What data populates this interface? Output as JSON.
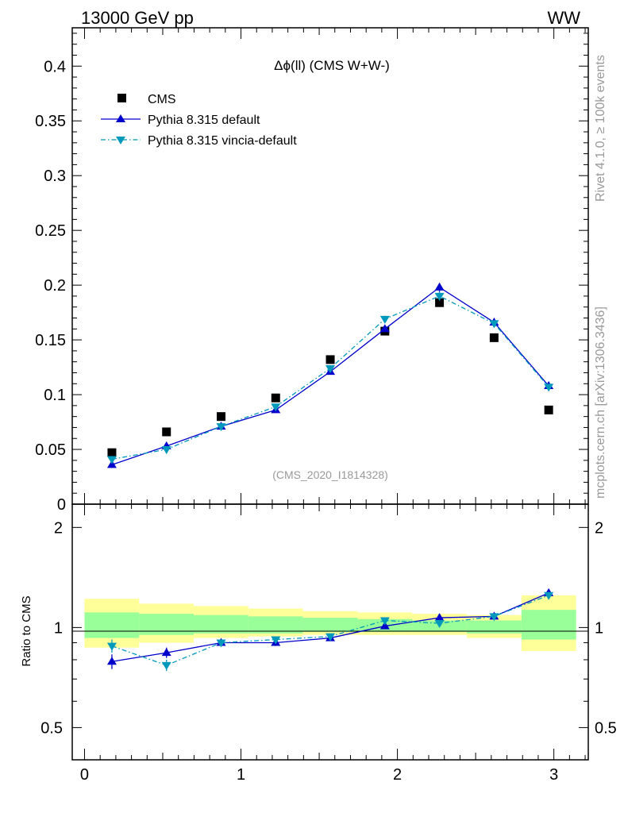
{
  "header": {
    "left": "13000 GeV pp",
    "right": "WW"
  },
  "side_labels": {
    "upper": "Rivet 4.1.0, ≥ 100k events",
    "lower": "mcplots.cern.ch [arXiv:1306.3436]"
  },
  "colors": {
    "cms": "#000000",
    "default": "#0000cc",
    "vincia": "#0099bb",
    "band_outer": "#ffff99",
    "band_inner": "#99ff99",
    "watermark": "#999999"
  },
  "chart_data": {
    "type": "scatter",
    "title": "Δϕ(ll) (CMS W+W-)",
    "analysis": "(CMS_2020_I1814328)",
    "xlim": [
      -0.0785,
      3.22
    ],
    "main": {
      "ylim": [
        0,
        0.435
      ],
      "yticks": [
        0,
        0.05,
        0.1,
        0.15,
        0.2,
        0.25,
        0.3,
        0.35,
        0.4
      ],
      "ytick_labels": [
        "0",
        "0.05",
        "0.1",
        "0.15",
        "0.2",
        "0.25",
        "0.3",
        "0.35",
        "0.4"
      ]
    },
    "ratio": {
      "ylabel": "Ratio to CMS",
      "ylim": [
        0.4,
        2.35
      ],
      "ytick_values": [
        0.5,
        1,
        2
      ],
      "ytick_labels": [
        "0.5",
        "1",
        "2"
      ]
    },
    "xticks": [
      0,
      1,
      2,
      3
    ],
    "xtick_labels": [
      "0",
      "1",
      "2",
      "3"
    ],
    "bin_edges": [
      0,
      0.349,
      0.698,
      1.047,
      1.396,
      1.745,
      2.094,
      2.443,
      2.793,
      3.142
    ],
    "x": [
      0.175,
      0.524,
      0.873,
      1.222,
      1.571,
      1.92,
      2.269,
      2.618,
      2.967
    ],
    "band_outer_ratio": [
      [
        0.87,
        1.22
      ],
      [
        0.9,
        1.18
      ],
      [
        0.93,
        1.16
      ],
      [
        0.94,
        1.14
      ],
      [
        0.95,
        1.12
      ],
      [
        0.95,
        1.11
      ],
      [
        0.95,
        1.1
      ],
      [
        0.93,
        1.09
      ],
      [
        0.85,
        1.25
      ]
    ],
    "band_inner_ratio": [
      [
        0.93,
        1.11
      ],
      [
        0.95,
        1.1
      ],
      [
        0.96,
        1.09
      ],
      [
        0.96,
        1.08
      ],
      [
        0.97,
        1.07
      ],
      [
        0.97,
        1.06
      ],
      [
        0.97,
        1.05
      ],
      [
        0.96,
        1.05
      ],
      [
        0.92,
        1.13
      ]
    ],
    "legend": [
      {
        "label": "CMS",
        "series": "cms"
      },
      {
        "label": "Pythia 8.315 default",
        "series": "default"
      },
      {
        "label": "Pythia 8.315 vincia-default",
        "series": "vincia"
      }
    ],
    "series": [
      {
        "key": "cms",
        "name": "CMS",
        "marker": "square",
        "values": [
          0.047,
          0.066,
          0.08,
          0.097,
          0.132,
          0.158,
          0.184,
          0.152,
          0.086
        ]
      },
      {
        "key": "default",
        "name": "Pythia 8.315 default",
        "marker": "triangle-up",
        "line": "solid",
        "values": [
          0.036,
          0.053,
          0.071,
          0.086,
          0.121,
          0.16,
          0.198,
          0.166,
          0.108
        ],
        "errors": [
          0.003,
          0.002,
          0.002,
          0.002,
          0.002,
          0.003,
          0.004,
          0.003,
          0.002
        ],
        "ratio": [
          0.79,
          0.84,
          0.9,
          0.9,
          0.93,
          1.01,
          1.07,
          1.08,
          1.27
        ],
        "ratio_errors": [
          0.04,
          0.03,
          0.02,
          0.02,
          0.02,
          0.02,
          0.02,
          0.02,
          0.03
        ]
      },
      {
        "key": "vincia",
        "name": "Pythia 8.315 vincia-default",
        "marker": "triangle-down",
        "line": "dashdot",
        "values": [
          0.041,
          0.05,
          0.071,
          0.089,
          0.124,
          0.169,
          0.19,
          0.165,
          0.107
        ],
        "errors": [
          0.003,
          0.002,
          0.002,
          0.002,
          0.002,
          0.003,
          0.004,
          0.003,
          0.002
        ],
        "ratio": [
          0.88,
          0.77,
          0.9,
          0.92,
          0.94,
          1.05,
          1.03,
          1.08,
          1.25
        ],
        "ratio_errors": [
          0.04,
          0.03,
          0.02,
          0.02,
          0.02,
          0.02,
          0.02,
          0.02,
          0.03
        ]
      }
    ]
  }
}
